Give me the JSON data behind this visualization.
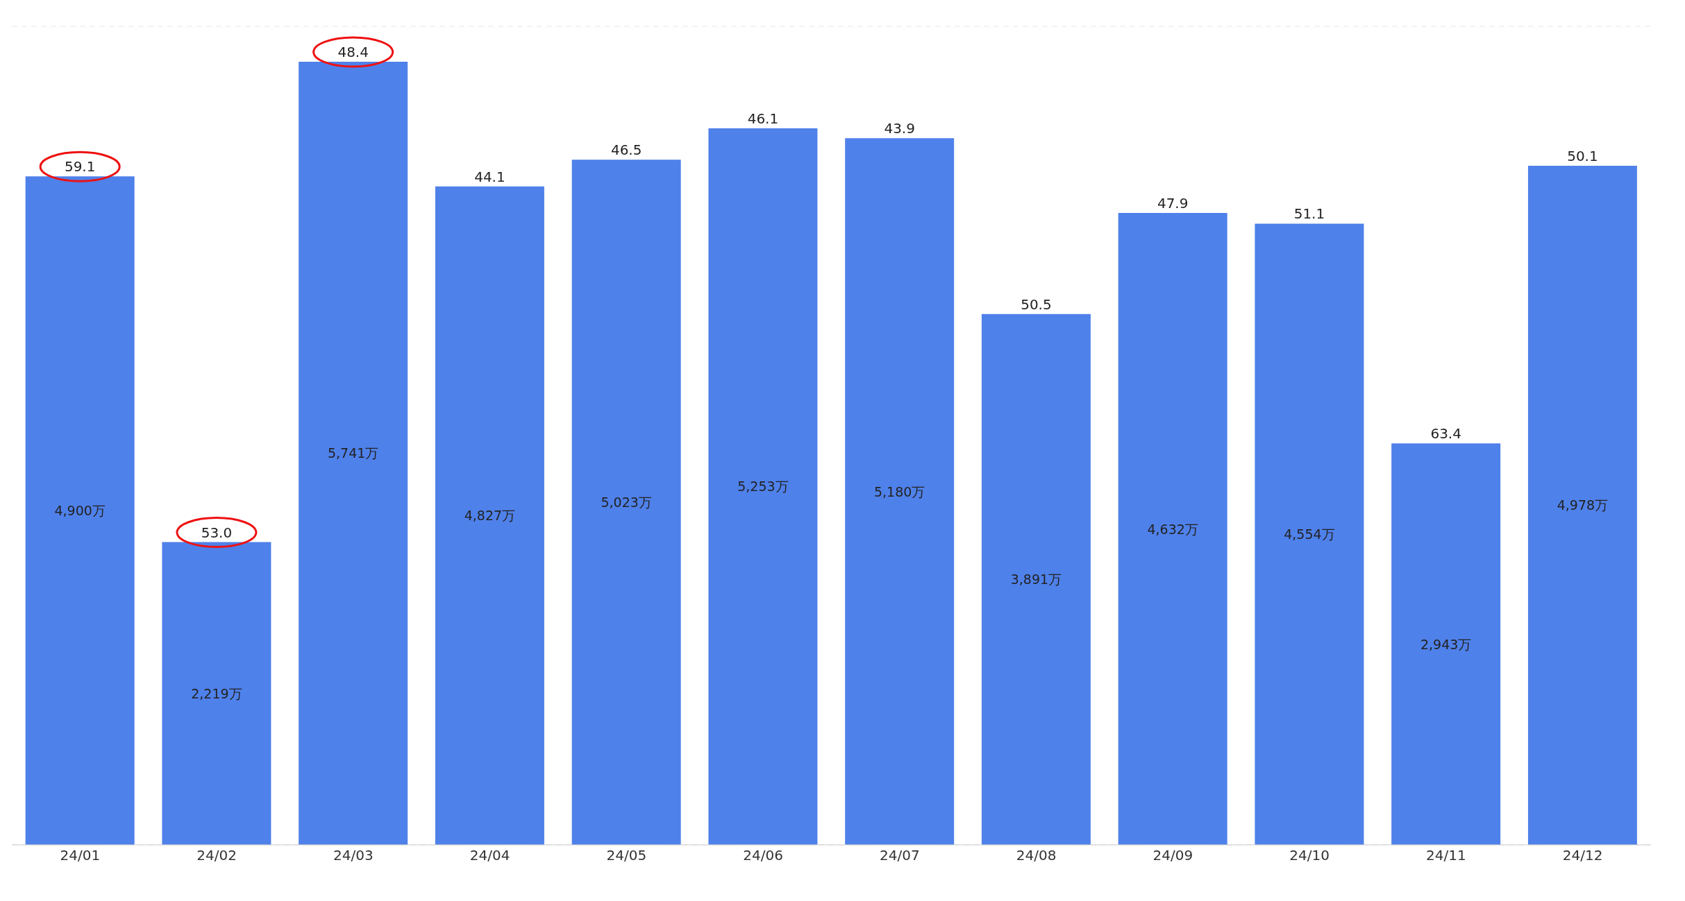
{
  "chart_data": {
    "type": "bar",
    "categories": [
      "24/01",
      "24/02",
      "24/03",
      "24/04",
      "24/05",
      "24/06",
      "24/07",
      "24/08",
      "24/09",
      "24/10",
      "24/11",
      "24/12"
    ],
    "values": [
      4900,
      2219,
      5741,
      4827,
      5023,
      5253,
      5180,
      3891,
      4632,
      4554,
      2943,
      4978
    ],
    "value_labels": [
      "4,900万",
      "2,219万",
      "5,741万",
      "4,827万",
      "5,023万",
      "5,253万",
      "5,180万",
      "3,891万",
      "4,632万",
      "4,554万",
      "2,943万",
      "4,978万"
    ],
    "color": "#4f81ea",
    "ylim": [
      0,
      6000
    ],
    "tick_labels": "x",
    "grid": "y",
    "legend": false,
    "annotations": [
      {
        "text": "59.1",
        "x": "24/01",
        "y": 4900
      },
      {
        "text": "53.0",
        "x": "24/02",
        "y": 2219
      },
      {
        "text": "48.4",
        "x": "24/03",
        "y": 5741
      },
      {
        "text": "44.1",
        "x": "24/04",
        "y": 4827
      },
      {
        "text": "46.5",
        "x": "24/05",
        "y": 5023
      },
      {
        "text": "46.1",
        "x": "24/06",
        "y": 5253
      },
      {
        "text": "43.9",
        "x": "24/07",
        "y": 5180
      },
      {
        "text": "50.5",
        "x": "24/08",
        "y": 3891
      },
      {
        "text": "47.9",
        "x": "24/09",
        "y": 4632
      },
      {
        "text": "51.1",
        "x": "24/10",
        "y": 4554
      },
      {
        "text": "63.4",
        "x": "24/11",
        "y": 2943
      },
      {
        "text": "50.1",
        "x": "24/12",
        "y": 4978
      }
    ]
  }
}
